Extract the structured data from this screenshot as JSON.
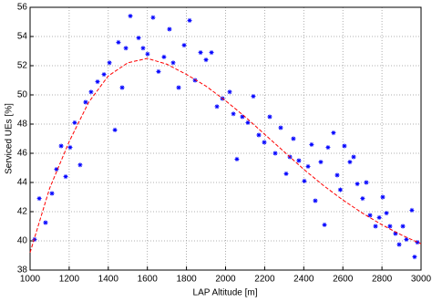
{
  "chart_data": {
    "type": "scatter",
    "xlabel": "LAP Altitude [m]",
    "ylabel": "Serviced UEs [%]",
    "xlim": [
      1000,
      3000
    ],
    "xticks": [
      1000,
      1200,
      1400,
      1600,
      1800,
      2000,
      2200,
      2400,
      2600,
      2800,
      3000
    ],
    "ylim": [
      38,
      56
    ],
    "yticks": [
      38,
      40,
      42,
      44,
      46,
      48,
      50,
      52,
      54,
      56
    ],
    "grid": true,
    "series": [
      {
        "type": "scatter",
        "color": "#0000ff",
        "x": [
          1023,
          1047,
          1079,
          1112,
          1135,
          1159,
          1182,
          1205,
          1228,
          1256,
          1284,
          1312,
          1345,
          1378,
          1406,
          1434,
          1452,
          1471,
          1490,
          1513,
          1555,
          1578,
          1601,
          1629,
          1657,
          1685,
          1713,
          1732,
          1760,
          1788,
          1816,
          1844,
          1872,
          1900,
          1928,
          1956,
          1984,
          2021,
          2040,
          2058,
          2086,
          2114,
          2142,
          2170,
          2198,
          2226,
          2254,
          2282,
          2310,
          2329,
          2347,
          2375,
          2403,
          2422,
          2440,
          2459,
          2487,
          2506,
          2524,
          2552,
          2571,
          2587,
          2608,
          2636,
          2655,
          2674,
          2701,
          2720,
          2739,
          2767,
          2786,
          2804,
          2823,
          2841,
          2869,
          2888,
          2907,
          2925,
          2953,
          2967,
          2981
        ],
        "values": [
          40.1,
          42.9,
          41.25,
          43.25,
          44.9,
          46.5,
          44.4,
          46.4,
          48.1,
          45.2,
          49.5,
          50.2,
          50.9,
          51.4,
          52.2,
          47.6,
          53.6,
          50.5,
          53.2,
          55.4,
          53.9,
          53.2,
          52.8,
          55.3,
          51.6,
          52.6,
          54.5,
          52.2,
          50.5,
          53.4,
          55.1,
          51.0,
          52.9,
          52.4,
          52.9,
          49.2,
          49.75,
          50.2,
          48.7,
          45.6,
          48.5,
          48.1,
          49.9,
          47.25,
          46.75,
          48.5,
          46.0,
          47.75,
          44.6,
          45.75,
          47.0,
          45.5,
          44.1,
          45.1,
          46.6,
          42.75,
          45.4,
          41.1,
          46.4,
          47.4,
          44.5,
          43.5,
          46.5,
          45.4,
          45.75,
          43.9,
          42.9,
          44.0,
          41.75,
          41.0,
          41.6,
          43.0,
          41.9,
          41.0,
          40.5,
          39.75,
          41.0,
          40.1,
          42.1,
          38.9,
          39.9
        ]
      },
      {
        "type": "line",
        "color": "#ff0000",
        "style": "dashed",
        "x": [
          1000,
          1100,
          1200,
          1300,
          1400,
          1500,
          1600,
          1700,
          1800,
          1900,
          2000,
          2100,
          2200,
          2300,
          2400,
          2500,
          2600,
          2700,
          2800,
          2900,
          3000
        ],
        "values": [
          39.2,
          43.6,
          46.8,
          49.5,
          51.3,
          52.2,
          52.5,
          52.1,
          51.4,
          50.6,
          49.6,
          48.5,
          47.3,
          46.1,
          44.9,
          43.8,
          42.8,
          41.9,
          41.1,
          40.4,
          39.8
        ]
      }
    ]
  }
}
